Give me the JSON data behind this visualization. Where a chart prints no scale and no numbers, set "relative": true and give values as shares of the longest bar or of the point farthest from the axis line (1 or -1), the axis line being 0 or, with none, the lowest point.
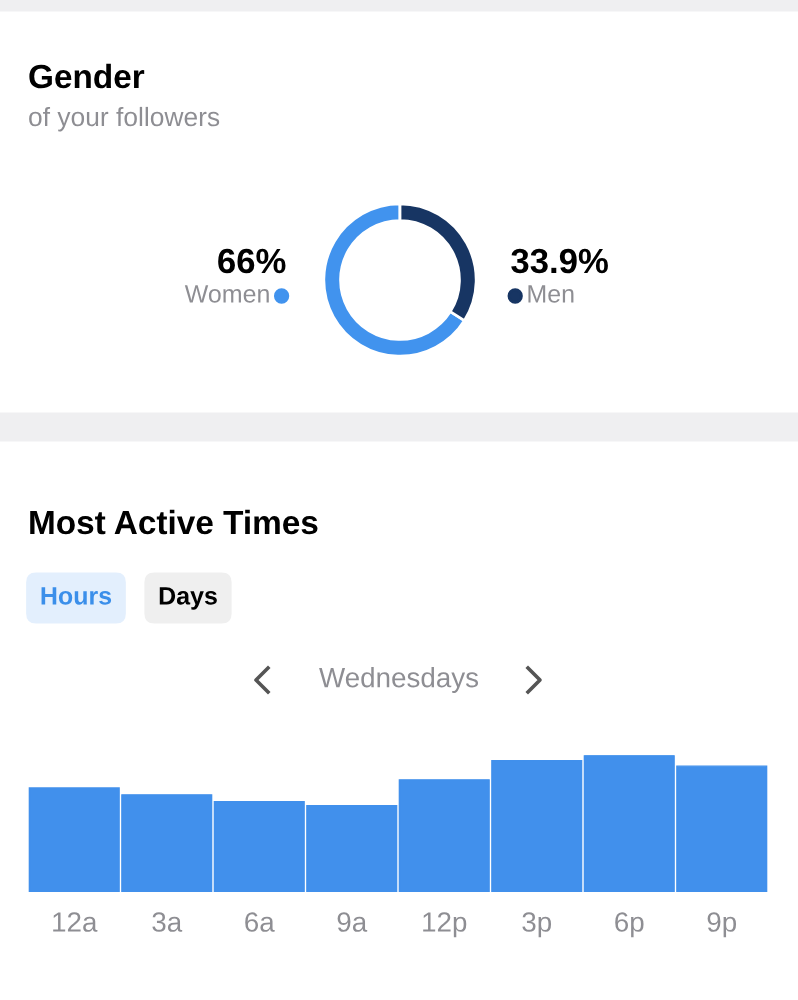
{
  "chart_data": [
    {
      "type": "donut",
      "title": "Gender",
      "subtitle": "of your followers",
      "categories": [
        "Women",
        "Men"
      ],
      "values": [
        66,
        33.9
      ],
      "colors": [
        "#4193ee",
        "#173563"
      ],
      "value_labels": [
        "66%",
        "33.9%"
      ],
      "legend": "center"
    },
    {
      "type": "bar",
      "title": "Most Active Times",
      "subtitle": "Wednesdays",
      "annotations": [
        "Hours",
        "Days"
      ],
      "relative": true,
      "categories": [
        "12a",
        "3a",
        "6a",
        "9a",
        "12p",
        "3p",
        "6p",
        "9p"
      ],
      "values": [
        0.76,
        0.71,
        0.66,
        0.63,
        0.82,
        0.96,
        1,
        0.92
      ],
      "color": "#4190ec",
      "grid": false,
      "legend": false
    }
  ]
}
